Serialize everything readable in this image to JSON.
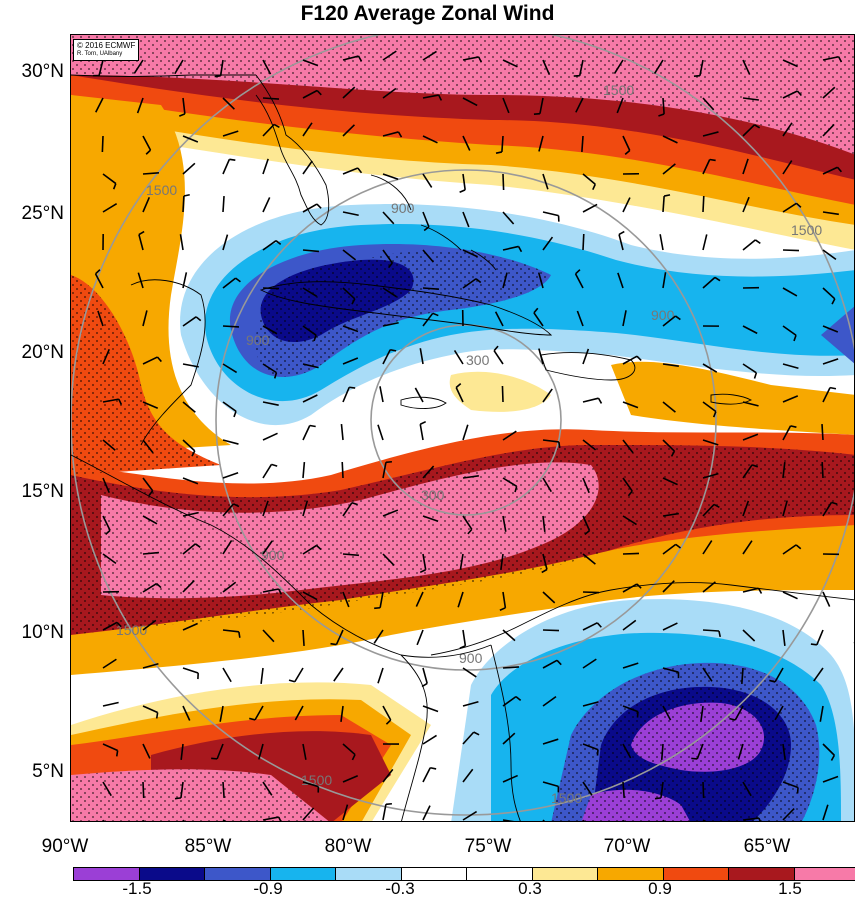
{
  "title": "F120 Average Zonal Wind",
  "credit": {
    "line1": "© 2016 ECMWF",
    "line2": "R. Torn, UAlbany"
  },
  "lat_labels": [
    "30°N",
    "25°N",
    "20°N",
    "15°N",
    "10°N",
    "5°N"
  ],
  "lon_labels": [
    "90°W",
    "85°W",
    "80°W",
    "75°W",
    "70°W",
    "65°W"
  ],
  "contour_labels": [
    "300",
    "900",
    "1500"
  ],
  "colorbar": {
    "labels": [
      "-1.5",
      "-0.9",
      "-0.3",
      "0.3",
      "0.9",
      "1.5"
    ],
    "colors": [
      "#9b3fd6",
      "#0a0a8a",
      "#3d57c9",
      "#17b4ee",
      "#a9dcf7",
      "#ffffff",
      "#ffffff",
      "#fde894",
      "#f7a800",
      "#f04a10",
      "#a8181e",
      "#f77aa8"
    ]
  },
  "colors": {
    "pink": "#f77aa8",
    "darkred": "#a8181e",
    "orangered": "#f04a10",
    "orange": "#f7a800",
    "yellow": "#fde894",
    "white": "#ffffff",
    "lightblue": "#a9dcf7",
    "cyan": "#17b4ee",
    "blue": "#3d57c9",
    "navy": "#0a0a8a",
    "purple": "#9b3fd6"
  }
}
